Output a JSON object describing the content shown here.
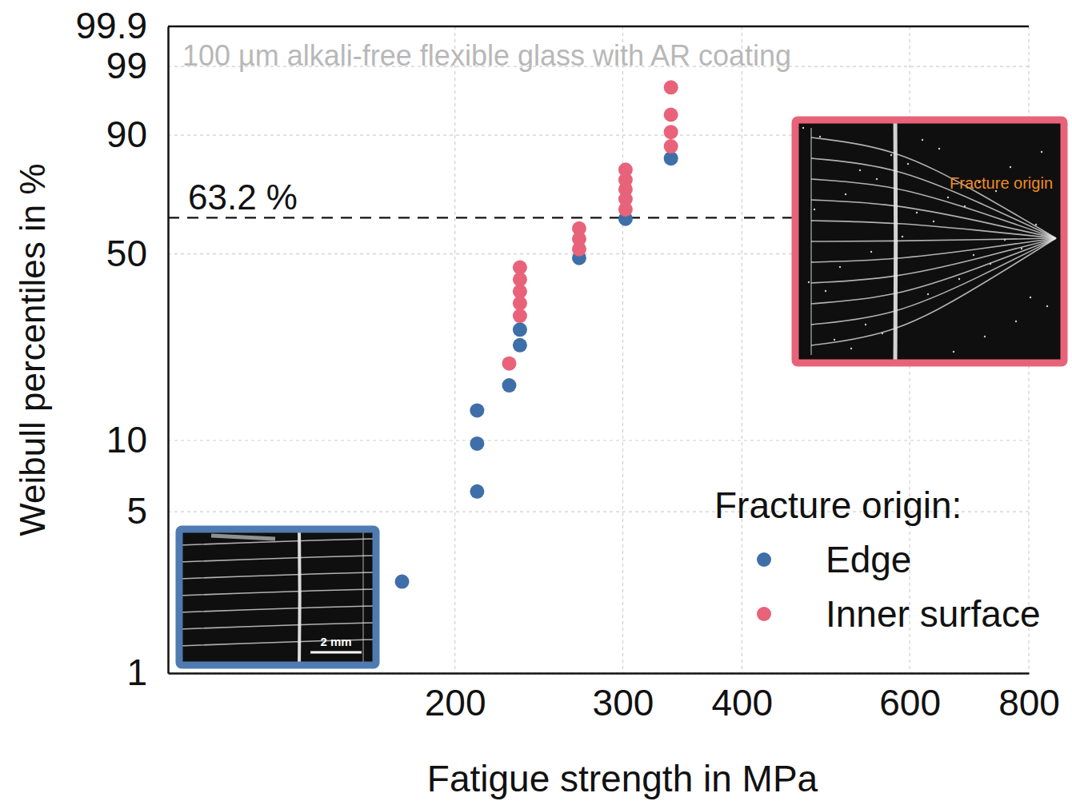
{
  "chart_data": {
    "type": "scatter",
    "x_label": "Fatigue strength in MPa",
    "y_label": "Weibull percentiles in %",
    "log": "x",
    "grid": true,
    "legend": "lower right",
    "legend_title": "Fracture origin:",
    "xlim": [
      100,
      800
    ],
    "xticks": [
      200,
      300,
      400,
      600,
      800
    ],
    "ylim": [
      1,
      99.9
    ],
    "yticks": [
      1,
      5,
      10,
      50,
      90,
      99,
      99.9
    ],
    "annotations": [
      {
        "text": "63.2 %",
        "y": 63.2,
        "line_style": "dashed"
      },
      {
        "text": "100 µm alkali-free flexible glass with AR coating"
      }
    ],
    "insets": [
      {
        "text": "Fracture origin",
        "color": "#f08a24",
        "border_color": "#e8637a"
      },
      {
        "text": "2 mm",
        "color": "#ffffff",
        "border_color": "#4f7bb0"
      }
    ],
    "series": [
      {
        "name": "Edge",
        "color": "#3f6fa8",
        "marker": "circle",
        "x": [
          176,
          211,
          211,
          211,
          228,
          234,
          234,
          270,
          302,
          337
        ],
        "values": [
          2.5,
          6.1,
          9.7,
          13.3,
          16.8,
          24.1,
          27.6,
          48.6,
          62.8,
          83.8
        ]
      },
      {
        "name": "Inner surface",
        "color": "#e8637a",
        "marker": "circle",
        "x": [
          228,
          234,
          234,
          234,
          234,
          234,
          270,
          270,
          270,
          302,
          302,
          302,
          302,
          302,
          337,
          337,
          337,
          337
        ],
        "values": [
          20.5,
          31.0,
          34.4,
          37.8,
          41.5,
          45.4,
          51.7,
          55.4,
          59.2,
          66.3,
          70.1,
          73.6,
          76.9,
          80.3,
          87.2,
          90.7,
          94.1,
          97.6
        ]
      }
    ]
  }
}
